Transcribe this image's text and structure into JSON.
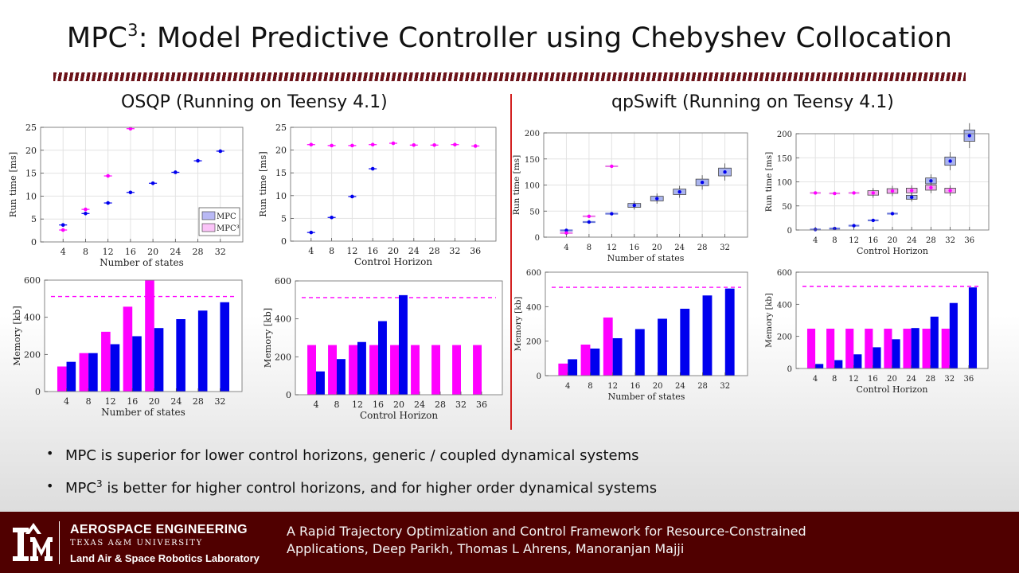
{
  "slide": {
    "title_main": "MPC",
    "title_sup": "3",
    "title_rest": ": Model Predictive Controller using Chebyshev Collocation",
    "left_heading": "OSQP (Running on Teensy 4.1)",
    "right_heading": "qpSwift (Running on Teensy 4.1)"
  },
  "bullets": [
    {
      "pre": "MPC is superior for lower control horizons, generic / coupled dynamical systems",
      "sup": "",
      "post": ""
    },
    {
      "pre": "MPC",
      "sup": "3",
      "post": " is better for higher control horizons, and for higher order dynamical systems"
    }
  ],
  "footer": {
    "department": "AEROSPACE ENGINEERING",
    "university": "TEXAS A&M UNIVERSITY",
    "lab": "Land Air & Space Robotics Laboratory",
    "citation_line1": "A Rapid Trajectory Optimization and Control Framework for Resource-Constrained",
    "citation_line2": "Applications, Deep Parikh, Thomas L Ahrens, Manoranjan Majji"
  },
  "colors": {
    "mpc": "#0000ee",
    "mpc3": "#ff00ff",
    "maroon": "#500000",
    "divider": "#d21f1f"
  },
  "chart_data": [
    {
      "id": "osqp_runtime_states",
      "type": "scatter",
      "xlabel": "Number of states",
      "ylabel": "Run time [ms]",
      "categories": [
        "4",
        "8",
        "12",
        "16",
        "20",
        "24",
        "28",
        "32"
      ],
      "yticks": [
        0,
        5,
        10,
        15,
        20,
        25
      ],
      "ylim": [
        0,
        25
      ],
      "legend": {
        "position": "bottom-right",
        "entries": [
          "MPC",
          "MPC³"
        ]
      },
      "series": [
        {
          "name": "MPC",
          "values": [
            3.7,
            6.2,
            8.5,
            10.8,
            12.8,
            15.2,
            17.7,
            19.8
          ]
        },
        {
          "name": "MPC³",
          "values": [
            2.6,
            7.1,
            14.4,
            24.7,
            null,
            null,
            null,
            null
          ]
        }
      ]
    },
    {
      "id": "osqp_runtime_horizon",
      "type": "scatter",
      "xlabel": "Control Horizon",
      "ylabel": "Run time [ms]",
      "categories": [
        "4",
        "8",
        "12",
        "16",
        "20",
        "24",
        "28",
        "32",
        "36"
      ],
      "yticks": [
        0,
        5,
        10,
        15,
        20,
        25
      ],
      "ylim": [
        0,
        25
      ],
      "series": [
        {
          "values": [
            1.9,
            5.2,
            9.8,
            15.9,
            null,
            null,
            null,
            null,
            null
          ]
        },
        {
          "values": [
            21.2,
            21.0,
            21.0,
            21.2,
            21.5,
            21.1,
            21.1,
            21.2,
            20.9
          ]
        }
      ]
    },
    {
      "id": "osqp_memory_states",
      "type": "bar",
      "xlabel": "Number of states",
      "ylabel": "Memory [kb]",
      "categories": [
        "4",
        "8",
        "12",
        "16",
        "20",
        "24",
        "28",
        "32"
      ],
      "yticks": [
        0,
        200,
        400,
        600
      ],
      "ylim": [
        0,
        600
      ],
      "limit_line": 512,
      "series": [
        {
          "values": [
            135,
            207,
            322,
            457,
            605,
            null,
            null,
            null
          ]
        },
        {
          "values": [
            160,
            207,
            255,
            298,
            342,
            390,
            436,
            481
          ]
        }
      ]
    },
    {
      "id": "osqp_memory_horizon",
      "type": "bar",
      "xlabel": "Control Horizon",
      "ylabel": "Memory [kb]",
      "categories": [
        "4",
        "8",
        "12",
        "16",
        "20",
        "24",
        "28",
        "32",
        "36"
      ],
      "yticks": [
        0,
        200,
        400,
        600
      ],
      "ylim": [
        0,
        600
      ],
      "limit_line": 512,
      "series": [
        {
          "values": [
            262,
            262,
            262,
            262,
            262,
            262,
            262,
            262,
            262
          ]
        },
        {
          "values": [
            123,
            188,
            278,
            388,
            525,
            null,
            null,
            null,
            null
          ]
        }
      ]
    },
    {
      "id": "qpswift_runtime_states",
      "type": "box",
      "xlabel": "Number of states",
      "ylabel": "Run time [ms]",
      "categories": [
        "4",
        "8",
        "12",
        "16",
        "20",
        "24",
        "28",
        "32"
      ],
      "yticks": [
        0,
        50,
        100,
        150,
        200
      ],
      "ylim": [
        0,
        200
      ],
      "series": [
        {
          "values": [
            13,
            29,
            45,
            61,
            74,
            87,
            105,
            125
          ]
        },
        {
          "values": [
            8,
            40,
            136,
            null,
            null,
            null,
            null,
            null
          ]
        }
      ]
    },
    {
      "id": "qpswift_runtime_horizon",
      "type": "box",
      "xlabel": "Control Horizon",
      "ylabel": "Run time [ms]",
      "categories": [
        "4",
        "8",
        "12",
        "16",
        "20",
        "24",
        "28",
        "32",
        "36"
      ],
      "yticks": [
        0,
        50,
        100,
        150,
        200
      ],
      "ylim": [
        0,
        200
      ],
      "series": [
        {
          "values": [
            1,
            3,
            9,
            20,
            34,
            68,
            102,
            143,
            196
          ]
        },
        {
          "values": [
            77,
            76,
            77,
            77,
            81,
            82,
            88,
            82,
            null
          ]
        }
      ]
    },
    {
      "id": "qpswift_memory_states",
      "type": "bar",
      "xlabel": "Number of states",
      "ylabel": "Memory [kb]",
      "categories": [
        "4",
        "8",
        "12",
        "16",
        "20",
        "24",
        "28",
        "32"
      ],
      "yticks": [
        0,
        200,
        400,
        600
      ],
      "ylim": [
        0,
        600
      ],
      "limit_line": 512,
      "series": [
        {
          "values": [
            70,
            180,
            337,
            null,
            null,
            null,
            null,
            null
          ]
        },
        {
          "values": [
            95,
            157,
            217,
            270,
            330,
            388,
            465,
            505
          ]
        }
      ]
    },
    {
      "id": "qpswift_memory_horizon",
      "type": "bar",
      "xlabel": "Control Horizon",
      "ylabel": "Memory [kb]",
      "categories": [
        "4",
        "8",
        "12",
        "16",
        "20",
        "24",
        "28",
        "32",
        "36"
      ],
      "yticks": [
        0,
        200,
        400,
        600
      ],
      "ylim": [
        0,
        600
      ],
      "limit_line": 512,
      "series": [
        {
          "values": [
            248,
            248,
            248,
            248,
            248,
            248,
            248,
            248,
            null
          ]
        },
        {
          "values": [
            28,
            52,
            88,
            132,
            182,
            252,
            323,
            408,
            505
          ]
        }
      ]
    }
  ]
}
